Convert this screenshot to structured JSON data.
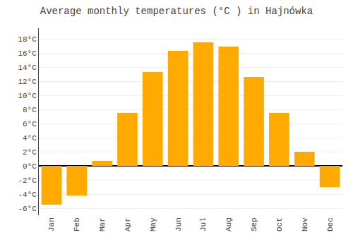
{
  "chart_data": {
    "type": "bar",
    "title": "Average monthly temperatures (°C ) in Hajnówka",
    "categories": [
      "Jan",
      "Feb",
      "Mar",
      "Apr",
      "May",
      "Jun",
      "Jul",
      "Aug",
      "Sep",
      "Oct",
      "Nov",
      "Dec"
    ],
    "values": [
      -5.5,
      -4.2,
      0.7,
      7.5,
      13.3,
      16.3,
      17.5,
      16.9,
      12.6,
      7.5,
      2.0,
      -3.0
    ],
    "color": "#FFAA00",
    "ylim": [
      -7.0,
      19.5
    ],
    "yticks": [
      {
        "value": -6,
        "label": "-6°C"
      },
      {
        "value": -4,
        "label": "-4°C"
      },
      {
        "value": -2,
        "label": "-2°C"
      },
      {
        "value": 0,
        "label": "0°C"
      },
      {
        "value": 2,
        "label": "2°C"
      },
      {
        "value": 4,
        "label": "4°C"
      },
      {
        "value": 6,
        "label": "6°C"
      },
      {
        "value": 8,
        "label": "8°C"
      },
      {
        "value": 10,
        "label": "10°C"
      },
      {
        "value": 12,
        "label": "12°C"
      },
      {
        "value": 14,
        "label": "14°C"
      },
      {
        "value": 16,
        "label": "16°C"
      },
      {
        "value": 18,
        "label": "18°C"
      }
    ],
    "grid": true
  }
}
